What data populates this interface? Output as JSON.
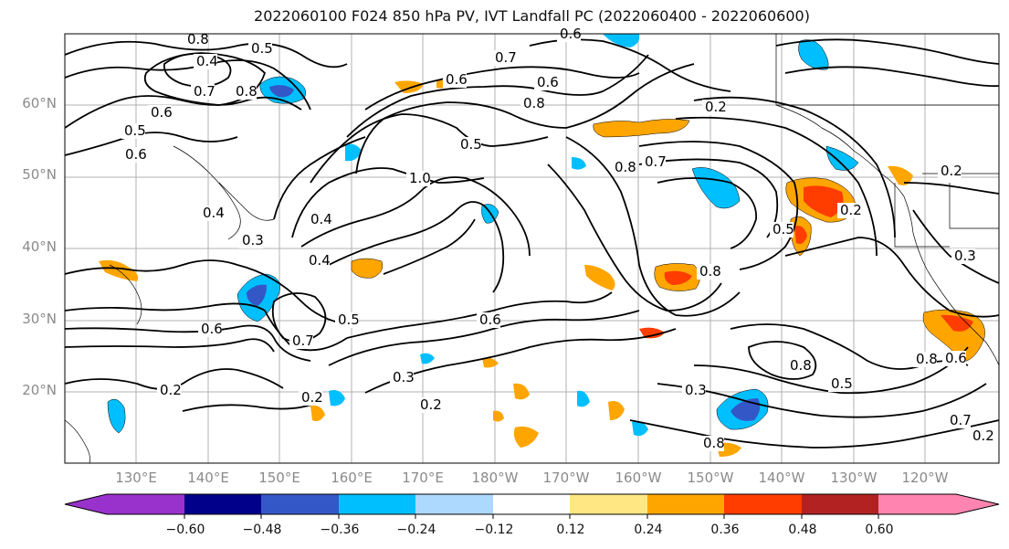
{
  "title": "2022060100 F024 850 hPa PV, IVT Landfall PC (2022060400 - 2022060600)",
  "map": {
    "lon_ticks": [
      "130°E",
      "140°E",
      "150°E",
      "160°E",
      "170°E",
      "180°W",
      "170°W",
      "160°W",
      "150°W",
      "140°W",
      "130°W",
      "120°W"
    ],
    "lat_ticks": [
      "60°N",
      "50°N",
      "40°N",
      "30°N",
      "20°N"
    ],
    "contour_labels": [
      "0.8",
      "0.5",
      "0.4",
      "0.7",
      "0.8",
      "0.6",
      "0.5",
      "0.6",
      "0.4",
      "1.0",
      "0.4",
      "0.8",
      "0.6",
      "0.7",
      "0.6",
      "0.5",
      "0.2",
      "0.2",
      "0.4",
      "0.6",
      "0.3",
      "0.2",
      "0.5",
      "0.8",
      "0.7",
      "0.8",
      "0.6",
      "0.2",
      "0.3",
      "0.2",
      "0.6",
      "0.5",
      "0.2",
      "0.7",
      "0.8",
      "0.8",
      "0.3",
      "0.5",
      "0.8",
      "0.7",
      "0.6",
      "0.3",
      "0.2"
    ],
    "land_color": "#ffffff",
    "coast_color": "#000000",
    "grid_color": "#b0b0b0"
  },
  "colorbar": {
    "colors": [
      "#9932CC",
      "#00008B",
      "#3457C8",
      "#00BFFF",
      "#ADD8FF",
      "#FFFFFF",
      "#FFE784",
      "#FFA500",
      "#FF3D00",
      "#B22222",
      "#FF85B0"
    ],
    "tick_labels": [
      "−0.60",
      "−0.48",
      "−0.36",
      "−0.24",
      "−0.12",
      "0.12",
      "0.24",
      "0.36",
      "0.48",
      "0.60"
    ]
  }
}
